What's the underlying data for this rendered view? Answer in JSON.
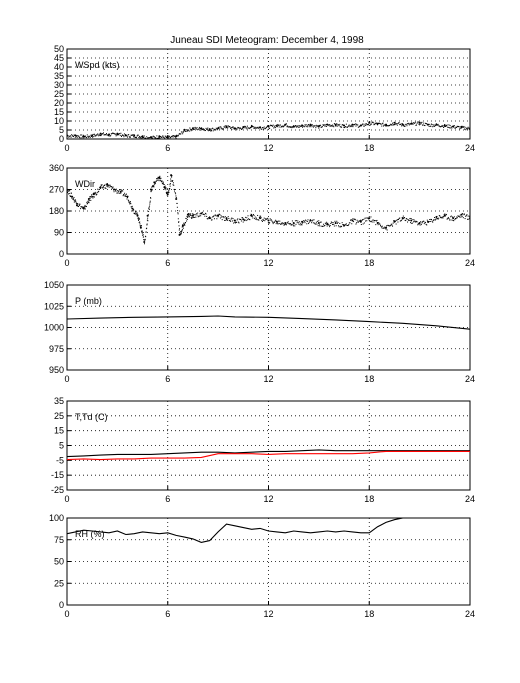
{
  "figure": {
    "title": "Juneau SDI Meteogram:  December  4, 1998"
  },
  "chart_data": [
    {
      "type": "scatter",
      "panel_label": "WSpd (kts)",
      "xlabel": "",
      "ylabel": "",
      "xlim": [
        0,
        24
      ],
      "ylim": [
        0,
        50
      ],
      "xticks": [
        0,
        6,
        12,
        18,
        24
      ],
      "yticks": [
        0,
        5,
        10,
        15,
        20,
        25,
        30,
        35,
        40,
        45,
        50
      ],
      "grid": true,
      "series": [
        {
          "color": "#000000",
          "style": "dots",
          "x": [
            0,
            0.5,
            1,
            1.5,
            2,
            2.5,
            3,
            3.5,
            4,
            4.5,
            5,
            5.5,
            6,
            6.5,
            7,
            7.5,
            8,
            8.5,
            9,
            9.5,
            10,
            10.5,
            11,
            11.5,
            12,
            12.5,
            13,
            13.5,
            14,
            14.5,
            15,
            15.5,
            16,
            16.5,
            17,
            17.5,
            18,
            18.5,
            19,
            19.5,
            20,
            20.5,
            21,
            21.5,
            22,
            22.5,
            23,
            23.5,
            24
          ],
          "y": [
            2,
            2,
            1.5,
            2,
            3,
            2.5,
            3,
            2,
            2,
            1.5,
            1,
            1.5,
            1,
            1.5,
            5,
            6,
            6,
            5.5,
            6,
            7,
            6,
            6.5,
            7,
            6.5,
            7,
            7.5,
            8,
            7,
            7.5,
            8,
            7,
            8,
            8,
            7.5,
            8,
            7.5,
            9,
            8.5,
            8,
            9,
            8,
            8.5,
            9,
            8,
            8,
            7.5,
            7,
            6.5,
            6
          ]
        }
      ]
    },
    {
      "type": "scatter",
      "panel_label": "WDir",
      "xlabel": "",
      "ylabel": "",
      "xlim": [
        0,
        24
      ],
      "ylim": [
        0,
        360
      ],
      "xticks": [
        0,
        6,
        12,
        18,
        24
      ],
      "yticks": [
        0,
        90,
        180,
        270,
        360
      ],
      "grid": true,
      "series": [
        {
          "color": "#000000",
          "style": "dots",
          "x": [
            0,
            0.3,
            0.6,
            1,
            1.3,
            1.6,
            2,
            2.4,
            2.8,
            3.2,
            3.6,
            3.9,
            4.2,
            4.4,
            4.6,
            4.8,
            5,
            5.2,
            5.5,
            5.8,
            6,
            6.2,
            6.5,
            6.7,
            6.9,
            7.2,
            7.5,
            8,
            8.5,
            9,
            9.5,
            10,
            10.5,
            11,
            11.5,
            12,
            12.5,
            13,
            13.5,
            14,
            14.5,
            15,
            15.5,
            16,
            16.5,
            17,
            17.5,
            18,
            18.5,
            19,
            19.5,
            20,
            20.5,
            21,
            21.5,
            22,
            22.5,
            23,
            23.5,
            24
          ],
          "y": [
            270,
            240,
            210,
            190,
            230,
            250,
            280,
            290,
            270,
            260,
            240,
            190,
            160,
            110,
            50,
            160,
            270,
            300,
            320,
            280,
            250,
            330,
            230,
            80,
            120,
            165,
            160,
            170,
            150,
            160,
            150,
            140,
            145,
            160,
            150,
            140,
            135,
            130,
            130,
            135,
            140,
            130,
            125,
            130,
            120,
            140,
            135,
            150,
            130,
            110,
            135,
            150,
            140,
            130,
            135,
            155,
            160,
            150,
            165,
            150
          ]
        }
      ]
    },
    {
      "type": "line",
      "panel_label": "P (mb)",
      "xlabel": "",
      "ylabel": "",
      "xlim": [
        0,
        24
      ],
      "ylim": [
        950,
        1050
      ],
      "xticks": [
        0,
        6,
        12,
        18,
        24
      ],
      "yticks": [
        950,
        975,
        1000,
        1025,
        1050
      ],
      "grid": true,
      "series": [
        {
          "color": "#000000",
          "x": [
            0,
            2,
            4,
            6,
            8,
            9,
            10,
            12,
            14,
            16,
            18,
            20,
            22,
            24
          ],
          "y": [
            1010,
            1011,
            1012,
            1012.5,
            1013,
            1013.5,
            1012.5,
            1012,
            1010.5,
            1009,
            1007,
            1005,
            1002,
            998
          ]
        }
      ]
    },
    {
      "type": "line",
      "panel_label": "T,Td (C)",
      "xlabel": "",
      "ylabel": "",
      "xlim": [
        0,
        24
      ],
      "ylim": [
        -25,
        35
      ],
      "xticks": [
        0,
        6,
        12,
        18,
        24
      ],
      "yticks": [
        -25,
        -15,
        -5,
        5,
        15,
        25,
        35
      ],
      "grid": true,
      "series": [
        {
          "color": "#000000",
          "x": [
            0,
            1,
            2,
            3,
            4,
            5,
            6,
            7,
            8,
            9,
            10,
            11,
            12,
            13,
            14,
            15,
            16,
            17,
            18,
            19,
            20,
            21,
            22,
            23,
            24
          ],
          "y": [
            -2.5,
            -2,
            -1.5,
            -1,
            -1,
            -1,
            -0.5,
            0,
            0.5,
            0.5,
            0,
            0.5,
            1,
            1,
            1.5,
            2,
            1.5,
            1.5,
            1.5,
            1.5,
            1.5,
            1.5,
            1.5,
            1.5,
            1.5
          ]
        },
        {
          "color": "#ff0000",
          "x": [
            0,
            1,
            2,
            3,
            4,
            5,
            6,
            7,
            8,
            9,
            10,
            11,
            12,
            13,
            14,
            15,
            16,
            17,
            18,
            19,
            20,
            21,
            22,
            23,
            24
          ],
          "y": [
            -4.5,
            -4,
            -4.5,
            -4,
            -4,
            -3.5,
            -3.5,
            -3.5,
            -3,
            -0.5,
            -0.5,
            -0.5,
            -1,
            -0.5,
            -0.5,
            -0.5,
            -0.5,
            -0.5,
            0,
            1,
            1,
            1,
            1,
            1,
            1
          ]
        }
      ]
    },
    {
      "type": "line",
      "panel_label": "RH (%)",
      "xlabel": "",
      "ylabel": "",
      "xlim": [
        0,
        24
      ],
      "ylim": [
        0,
        100
      ],
      "xticks": [
        0,
        6,
        12,
        18,
        24
      ],
      "yticks": [
        0,
        25,
        50,
        75,
        100
      ],
      "grid": true,
      "series": [
        {
          "color": "#000000",
          "x": [
            0,
            0.5,
            1,
            1.5,
            2,
            2.5,
            3,
            3.5,
            4,
            4.5,
            5,
            5.5,
            6,
            6.5,
            7,
            7.5,
            8,
            8.5,
            9,
            9.5,
            10,
            10.5,
            11,
            11.5,
            12,
            12.5,
            13,
            13.5,
            14,
            14.5,
            15,
            15.5,
            16,
            16.5,
            17,
            17.5,
            18,
            18.5,
            19,
            19.5,
            20
          ],
          "y": [
            82,
            84,
            86,
            85,
            84,
            83,
            85,
            81,
            82,
            84,
            83,
            82,
            83,
            80,
            78,
            76,
            72,
            74,
            84,
            93,
            91,
            89,
            87,
            88,
            85,
            84,
            83,
            85,
            84,
            83,
            84,
            85,
            84,
            85,
            84,
            83,
            83,
            90,
            95,
            98,
            100
          ]
        }
      ]
    }
  ]
}
